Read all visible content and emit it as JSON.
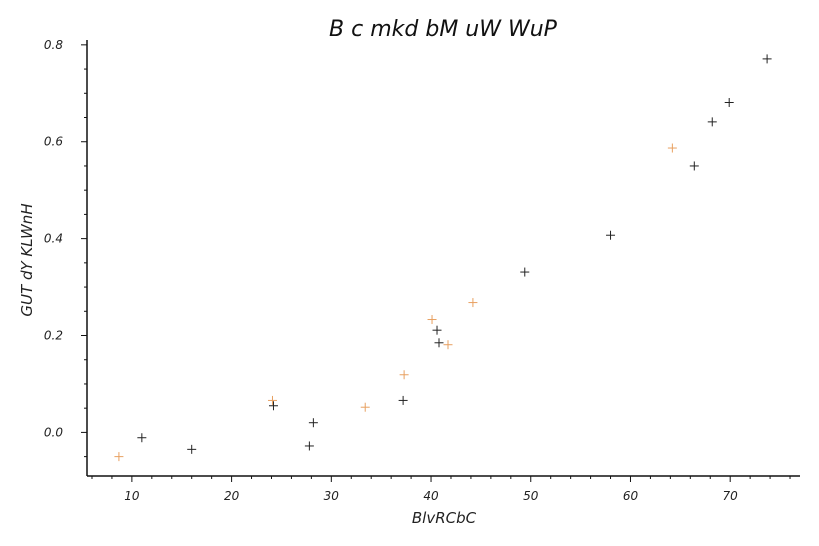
{
  "chart_data": {
    "type": "scatter",
    "title": "B c mkd  bM uW WuP",
    "xlabel": "BlvRCbC",
    "ylabel": "GUT dY KLWnH",
    "xlim": [
      5.5,
      77
    ],
    "ylim": [
      -0.09,
      0.81
    ],
    "x_ticks": [
      10,
      20,
      30,
      40,
      50,
      60,
      70
    ],
    "y_ticks": [
      0.0,
      0.2,
      0.4,
      0.6,
      0.8
    ],
    "x_tick_labels": [
      "10",
      "20",
      "30",
      "40",
      "50",
      "60",
      "70"
    ],
    "y_tick_labels": [
      "0.0",
      "0.2",
      "0.4",
      "0.6",
      "0.8"
    ],
    "grid": false,
    "legend": "none",
    "series": [
      {
        "color": "#222222",
        "marker": "plus",
        "points": [
          [
            11.0,
            -0.011
          ],
          [
            16.0,
            -0.035
          ],
          [
            24.2,
            0.055
          ],
          [
            27.8,
            -0.028
          ],
          [
            28.2,
            0.02
          ],
          [
            37.2,
            0.066
          ],
          [
            40.6,
            0.211
          ],
          [
            40.8,
            0.185
          ],
          [
            49.4,
            0.331
          ],
          [
            58.0,
            0.407
          ],
          [
            66.4,
            0.55
          ],
          [
            68.2,
            0.641
          ],
          [
            69.9,
            0.681
          ],
          [
            73.7,
            0.771
          ]
        ]
      },
      {
        "color": "#e8a060",
        "marker": "plus",
        "points": [
          [
            8.7,
            -0.05
          ],
          [
            24.1,
            0.066
          ],
          [
            33.4,
            0.052
          ],
          [
            37.3,
            0.119
          ],
          [
            40.1,
            0.233
          ],
          [
            41.7,
            0.181
          ],
          [
            44.2,
            0.268
          ],
          [
            64.2,
            0.587
          ]
        ]
      }
    ]
  }
}
